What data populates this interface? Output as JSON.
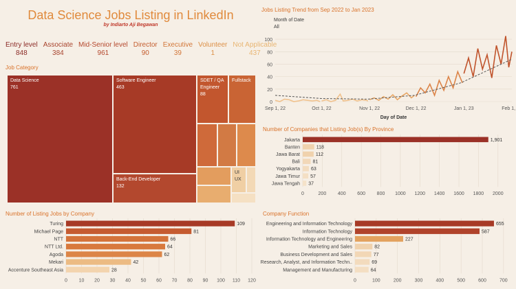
{
  "header": {
    "title": "Data Science Jobs Listing in LinkedIn",
    "byline": "by Indiarto Aji Begawan"
  },
  "levels": [
    {
      "label": "Entry level",
      "value": "848",
      "color": "#8b2a26"
    },
    {
      "label": "Associate",
      "value": "384",
      "color": "#a8432d"
    },
    {
      "label": "Mid-Senior level",
      "value": "961",
      "color": "#b4472c"
    },
    {
      "label": "Director",
      "value": "90",
      "color": "#c45d2f"
    },
    {
      "label": "Executive",
      "value": "39",
      "color": "#d27638"
    },
    {
      "label": "Volunteer",
      "value": "1",
      "color": "#dc8f45"
    },
    {
      "label": "Not Applicable",
      "value": "437",
      "color": "#e8b572"
    }
  ],
  "job_category": {
    "title": "Job Category",
    "cells": [
      {
        "label": "Data Science",
        "value": "761",
        "color": "#9b3127"
      },
      {
        "label": "Software Engineer",
        "value": "463",
        "color": "#a73a26"
      },
      {
        "label": "Back-End Developer",
        "value": "132",
        "color": "#b3482e"
      },
      {
        "label": "SDET / QA Engineer",
        "value": "88",
        "color": "#c2562e"
      },
      {
        "label": "Fullstack",
        "value": "",
        "color": "#c96434"
      },
      {
        "label": "UI UX",
        "value": "",
        "color": "#f0cfa4"
      }
    ]
  },
  "trend": {
    "title": "Jobs Listing Trend from Sep 2022 to Jan 2023",
    "filter_label": "Month of Date",
    "filter_value": "All",
    "x_title": "Day of Date"
  },
  "province": {
    "title": "Number of Companies that Listing Job(s) By Province"
  },
  "company": {
    "title": "Number of Listing Jobs by Company"
  },
  "function": {
    "title": "Company Function"
  },
  "chart_data": [
    {
      "type": "line",
      "title": "Jobs Listing Trend from Sep 2022 to Jan 2023",
      "xlabel": "Day of Date",
      "ylabel": "",
      "x_ticks": [
        "Sep 1, 22",
        "Oct 1, 22",
        "Nov 1, 22",
        "Dec 1, 22",
        "Jan 1, 23",
        "Feb 1, 23"
      ],
      "y_ticks": [
        0,
        20,
        40,
        60,
        80,
        100
      ],
      "ylim": [
        0,
        110
      ],
      "x_domain_days": [
        0,
        153
      ],
      "series": [
        {
          "name": "Sep 2022",
          "color": "#f0c28e",
          "points": [
            [
              0,
              2
            ],
            [
              3,
              0
            ],
            [
              6,
              4
            ],
            [
              9,
              3
            ],
            [
              12,
              0
            ],
            [
              15,
              1
            ],
            [
              18,
              3
            ],
            [
              21,
              2
            ],
            [
              24,
              1
            ],
            [
              27,
              2
            ],
            [
              29,
              0
            ]
          ]
        },
        {
          "name": "Oct 2022",
          "color": "#f0c28e",
          "points": [
            [
              30,
              1
            ],
            [
              33,
              3
            ],
            [
              36,
              0
            ],
            [
              39,
              2
            ],
            [
              42,
              12
            ],
            [
              44,
              1
            ],
            [
              47,
              2
            ],
            [
              50,
              4
            ],
            [
              53,
              1
            ],
            [
              56,
              3
            ],
            [
              59,
              2
            ],
            [
              60,
              1
            ]
          ]
        },
        {
          "name": "Nov 2022",
          "color": "#e8a868",
          "points": [
            [
              61,
              3
            ],
            [
              64,
              6
            ],
            [
              67,
              2
            ],
            [
              70,
              8
            ],
            [
              73,
              4
            ],
            [
              76,
              11
            ],
            [
              79,
              3
            ],
            [
              82,
              9
            ],
            [
              85,
              14
            ],
            [
              88,
              6
            ],
            [
              90,
              10
            ]
          ]
        },
        {
          "name": "Dec 2022",
          "color": "#dc8448",
          "points": [
            [
              91,
              8
            ],
            [
              94,
              22
            ],
            [
              97,
              14
            ],
            [
              100,
              28
            ],
            [
              103,
              10
            ],
            [
              106,
              34
            ],
            [
              109,
              18
            ],
            [
              112,
              40
            ],
            [
              115,
              22
            ],
            [
              118,
              48
            ],
            [
              121,
              30
            ]
          ]
        },
        {
          "name": "Jan 2023",
          "color": "#c0532b",
          "points": [
            [
              122,
              45
            ],
            [
              125,
              70
            ],
            [
              128,
              40
            ],
            [
              131,
              85
            ],
            [
              134,
              52
            ],
            [
              137,
              75
            ],
            [
              140,
              38
            ],
            [
              143,
              90
            ],
            [
              146,
              60
            ],
            [
              149,
              105
            ],
            [
              151,
              55
            ],
            [
              153,
              80
            ]
          ]
        }
      ],
      "trend_line": {
        "name": "Trend",
        "color": "#555555",
        "points": [
          [
            0,
            10
          ],
          [
            30,
            5
          ],
          [
            60,
            4
          ],
          [
            90,
            10
          ],
          [
            120,
            30
          ],
          [
            153,
            68
          ]
        ]
      }
    },
    {
      "type": "bar",
      "orientation": "horizontal",
      "title": "Number of Companies that Listing Job(s) By Province",
      "categories": [
        "Jakarta",
        "Banten",
        "Jawa Barat",
        "Bali",
        "Yogyakarta",
        "Jawa Timur",
        "Jawa Tengah"
      ],
      "values": [
        1901,
        118,
        112,
        81,
        63,
        57,
        37
      ],
      "ticks": [
        0,
        200,
        400,
        600,
        800,
        1000,
        1200,
        1400,
        1600,
        1800,
        2000
      ],
      "xlim": [
        0,
        2100
      ]
    },
    {
      "type": "bar",
      "orientation": "horizontal",
      "title": "Number of Listing Jobs by Company",
      "categories": [
        "Turing",
        "Michael Page",
        "NTT",
        "NTT Ltd.",
        "Agoda",
        "Mekari",
        "Accenture Southeast Asia"
      ],
      "values": [
        109,
        81,
        66,
        64,
        62,
        42,
        28
      ],
      "ticks": [
        0,
        10,
        20,
        30,
        40,
        50,
        60,
        70,
        80,
        90,
        100,
        110,
        120
      ],
      "xlim": [
        0,
        120
      ]
    },
    {
      "type": "bar",
      "orientation": "horizontal",
      "title": "Company Function",
      "categories": [
        "Engineering and Information Technology",
        "Information Technology",
        "Information Technology and Engineering",
        "Marketing and Sales",
        "Business Development and Sales",
        "Research, Analyst, and Information Techn..",
        "Management and Manufacturing"
      ],
      "values": [
        655,
        587,
        227,
        82,
        77,
        69,
        64
      ],
      "ticks": [
        0,
        100,
        200,
        300,
        400,
        500,
        600,
        700
      ],
      "xlim": [
        0,
        720
      ]
    }
  ]
}
